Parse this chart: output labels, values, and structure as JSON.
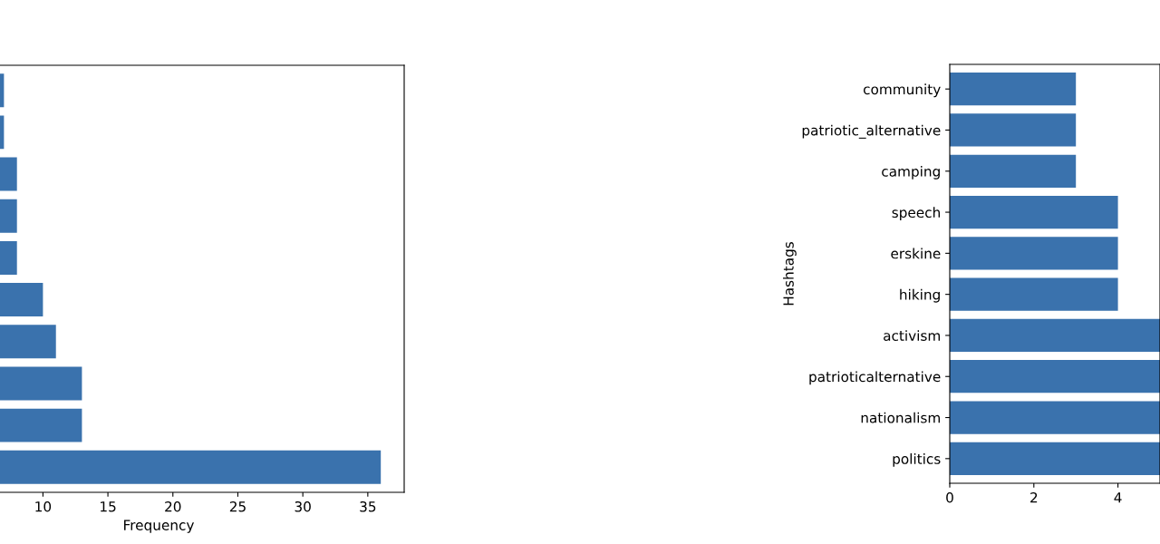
{
  "chart_data": [
    {
      "type": "bar",
      "orientation": "horizontal",
      "xlabel": "Frequency",
      "categories": [
        null,
        null,
        null,
        null,
        null,
        null,
        null,
        null,
        null,
        null
      ],
      "values": [
        7,
        7,
        8,
        8,
        8,
        10,
        11,
        13,
        13,
        36
      ],
      "color": "#3a72ad",
      "xlim": [
        0,
        37.8
      ],
      "xticks": [
        10,
        15,
        20,
        25,
        30,
        35
      ],
      "tick_labels": "x",
      "grid": false,
      "legend": false
    },
    {
      "type": "bar",
      "orientation": "horizontal",
      "ylabel": "Hashtags",
      "categories": [
        "community",
        "patriotic_alternative",
        "camping",
        "speech",
        "erskine",
        "hiking",
        "activism",
        "patrioticalternative",
        "nationalism",
        "politics"
      ],
      "values": [
        3,
        3,
        3,
        4,
        4,
        4,
        5,
        5,
        5,
        5
      ],
      "color": "#3a72ad",
      "xlim": [
        0,
        5
      ],
      "xticks": [
        0,
        2,
        4
      ],
      "grid": false,
      "legend": false
    }
  ]
}
